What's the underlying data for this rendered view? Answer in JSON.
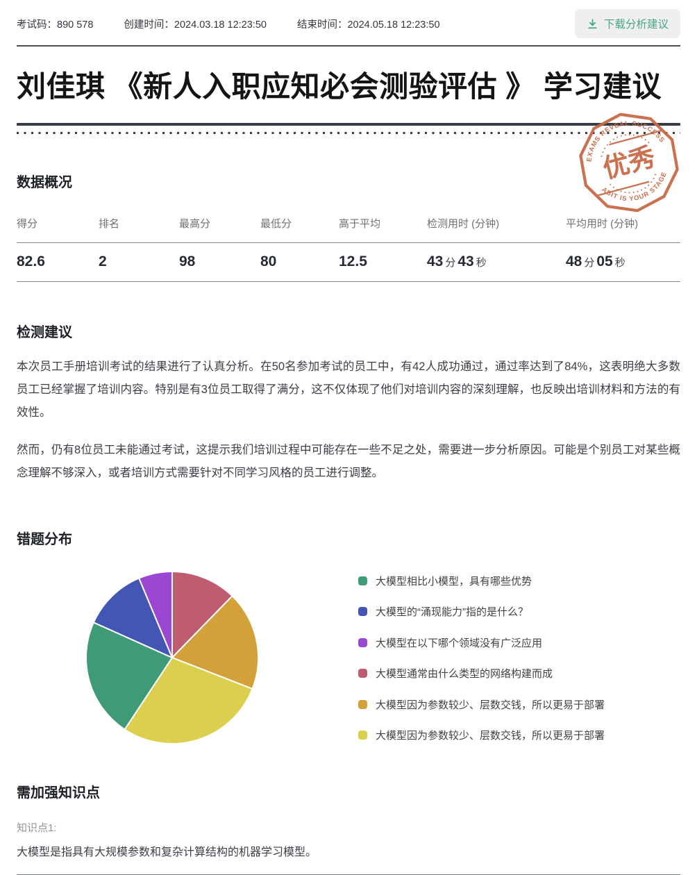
{
  "accent": {
    "green": "#45a783",
    "stamp_orange": "#c76a48"
  },
  "topbar": {
    "exam_code_label": "考试码：",
    "exam_code": "890 578",
    "created_label": "创建时间：",
    "created": "2024.03.18 12:23:50",
    "ended_label": "结束时间：",
    "ended": "2024.05.18 12:23:50",
    "download_label": "下载分析建议"
  },
  "title": "刘佳琪 《新人入职应知必会测验评估 》 学习建议",
  "stamp": {
    "top_text": "EXAMS REVEAL SUCCESS",
    "center_text": "优秀",
    "bottom_text": "ABIT IS YOUR STAGE"
  },
  "overview": {
    "heading": "数据概况",
    "columns": [
      "得分",
      "排名",
      "最高分",
      "最低分",
      "高于平均",
      "检测用时 (分钟)",
      "平均用时 (分钟)"
    ],
    "score": "82.6",
    "rank": "2",
    "max_score": "98",
    "min_score": "80",
    "above_avg": "12.5",
    "exam_time": {
      "m": "43",
      "m_unit": "分",
      "s": "43",
      "s_unit": "秒"
    },
    "avg_time": {
      "m": "48",
      "m_unit": "分",
      "s": "05",
      "s_unit": "秒"
    }
  },
  "suggest": {
    "heading": "检测建议",
    "p1": "本次员工手册培训考试的结果进行了认真分析。在50名参加考试的员工中，有42人成功通过，通过率达到了84%，这表明绝大多数员工已经掌握了培训内容。特别是有3位员工取得了满分，这不仅体现了他们对培训内容的深刻理解，也反映出培训材料和方法的有效性。",
    "p2": "然而，仍有8位员工未能通过考试，这提示我们培训过程中可能存在一些不足之处，需要进一步分析原因。可能是个别员工对某些概念理解不够深入，或者培训方式需要针对不同学习风格的员工进行调整。"
  },
  "chart_data": {
    "type": "pie",
    "title": "错题分布",
    "legend_position": "right",
    "values_unit": "percent (estimated from slice angles)",
    "slices": [
      {
        "label": "大模型相比小模型，具有哪些优势",
        "color": "#3f9a78",
        "percent": 22.4
      },
      {
        "label": "大模型的“涌现能力”指的是什么？",
        "color": "#4356b3",
        "percent": 12.0
      },
      {
        "label": "大模型在以下哪个领域没有广泛应用",
        "color": "#9a48d1",
        "percent": 6.3
      },
      {
        "label": "大模型通常由什么类型的网络构建而成",
        "color": "#c05c70",
        "percent": 12.3
      },
      {
        "label": "大模型因为参数较少、层数交钱，所以更易于部署",
        "color": "#d2a13a",
        "percent": 18.6
      },
      {
        "label": "大模型因为参数较少、层数交钱，所以更易于部署",
        "color": "#dbd04e",
        "percent": 28.4
      }
    ],
    "clockwise_from_top_order": [
      3,
      4,
      5,
      0,
      1,
      2
    ]
  },
  "knowledge": {
    "heading": "需加强知识点",
    "point_label": "知识点1:",
    "point_text": "大模型是指具有大规模参数和复杂计算结构的机器学习模型。"
  }
}
